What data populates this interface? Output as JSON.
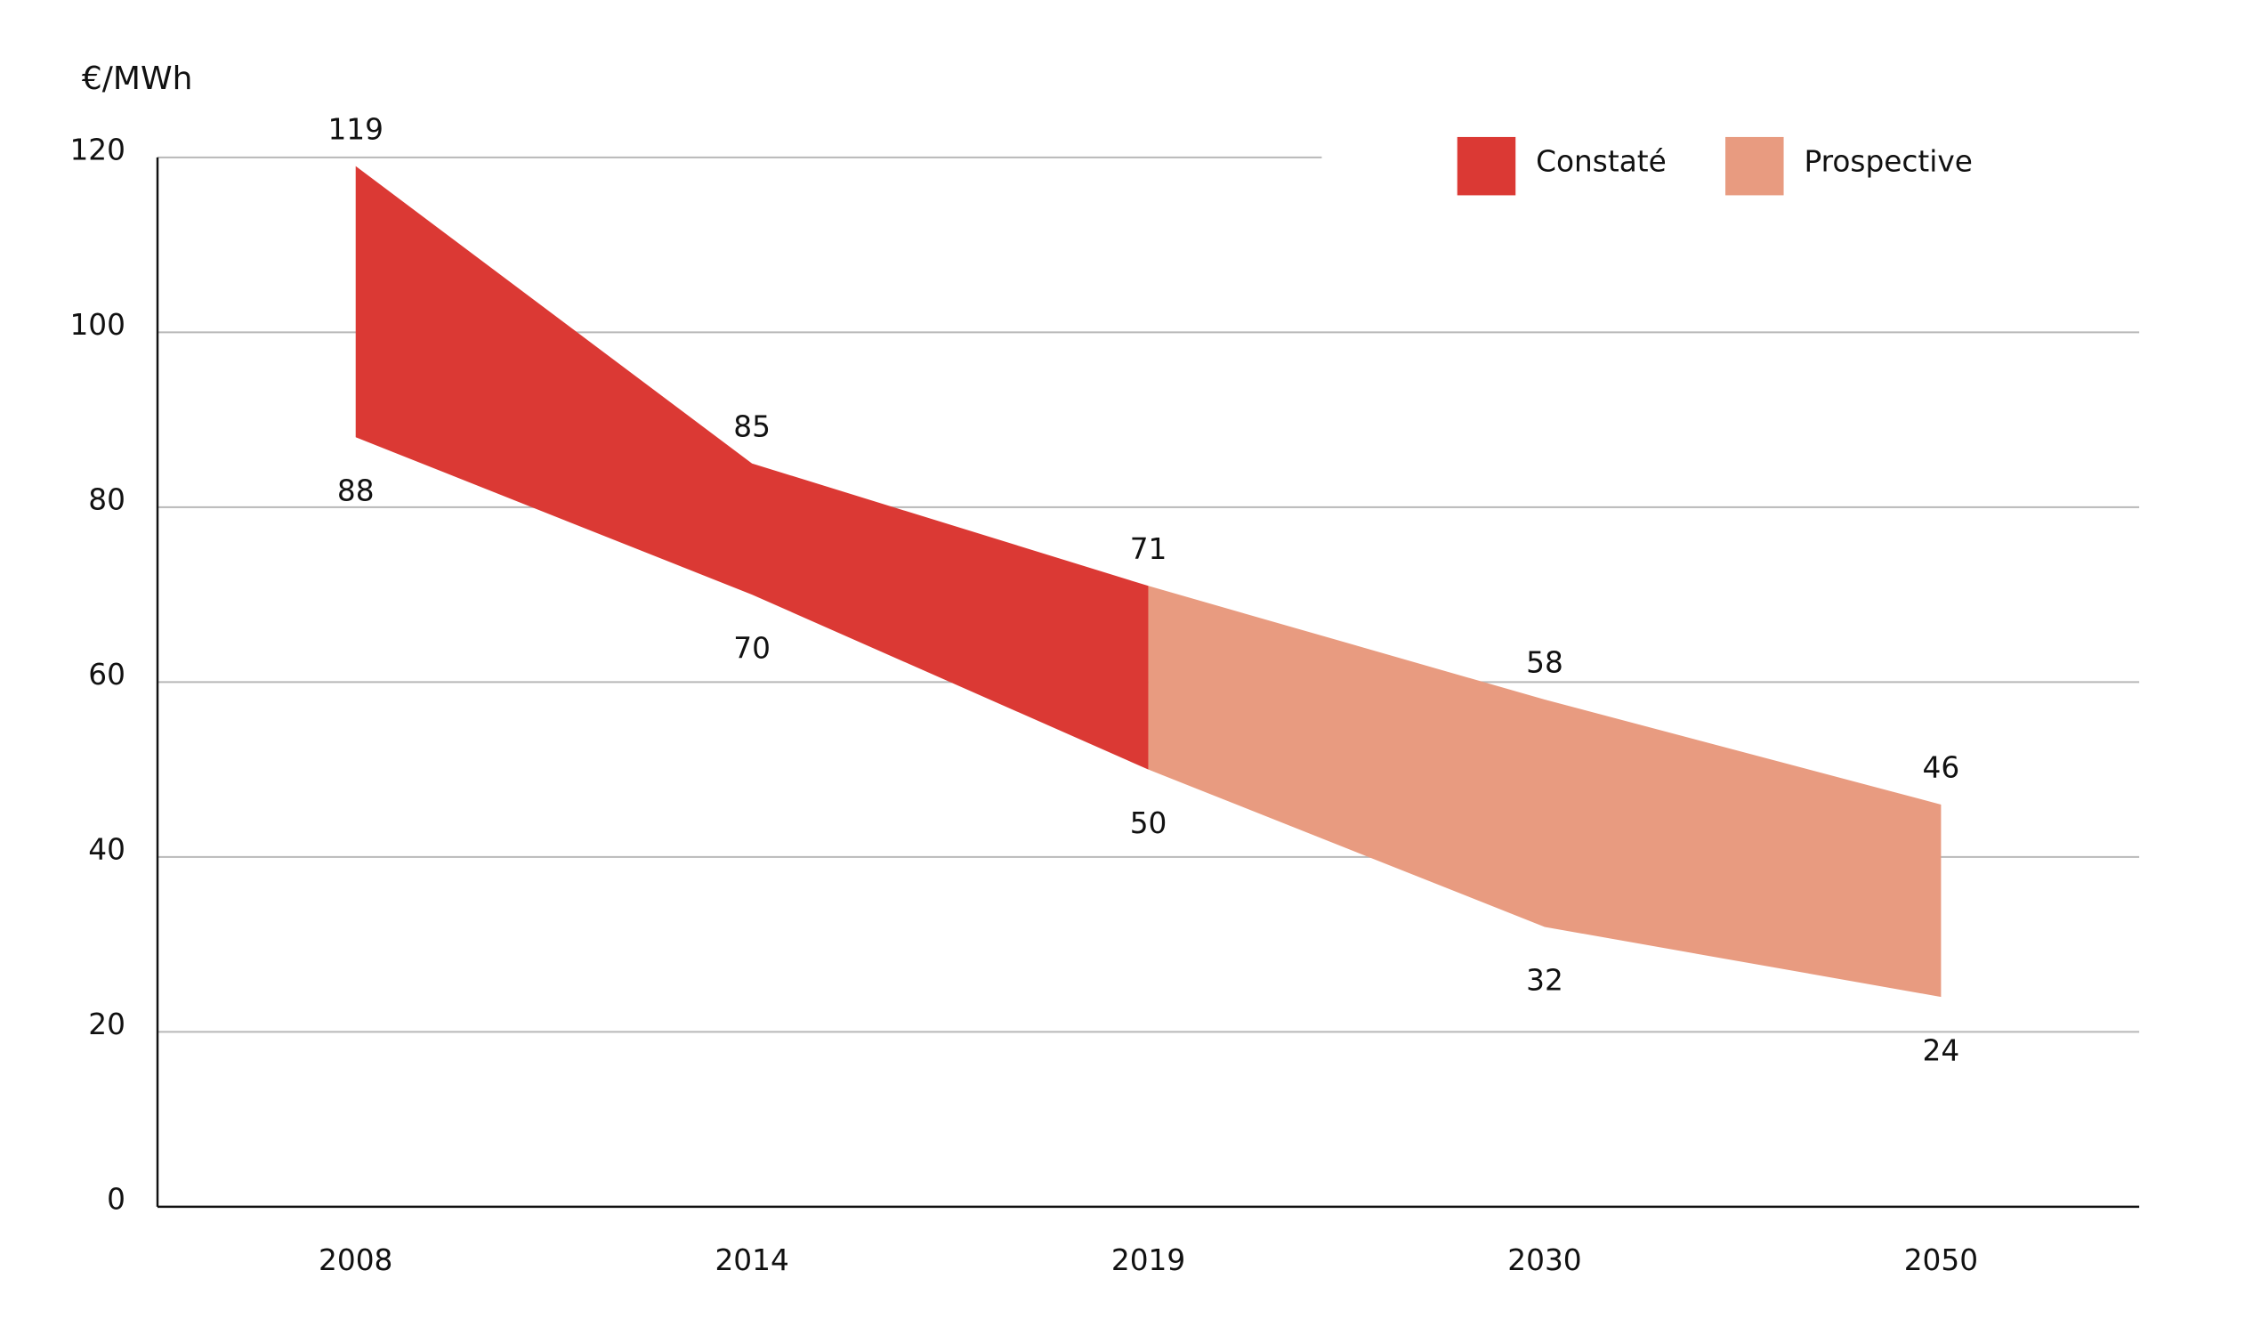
{
  "chart_data": {
    "type": "range-area",
    "y_label": "€/MWh",
    "categories": [
      "2008",
      "2014",
      "2019",
      "2030",
      "2050"
    ],
    "series": [
      {
        "name": "Constaté",
        "color": "#db3934",
        "high": [
          119,
          85,
          71,
          null,
          null
        ],
        "low": [
          88,
          70,
          50,
          null,
          null
        ]
      },
      {
        "name": "Prospective",
        "color": "#e89b80",
        "high": [
          null,
          null,
          71,
          58,
          46
        ],
        "low": [
          null,
          null,
          50,
          32,
          24
        ]
      }
    ],
    "ylim": [
      0,
      120
    ],
    "yticks": [
      0,
      20,
      40,
      60,
      80,
      100,
      120
    ],
    "grid": true,
    "legend": "top-right"
  }
}
